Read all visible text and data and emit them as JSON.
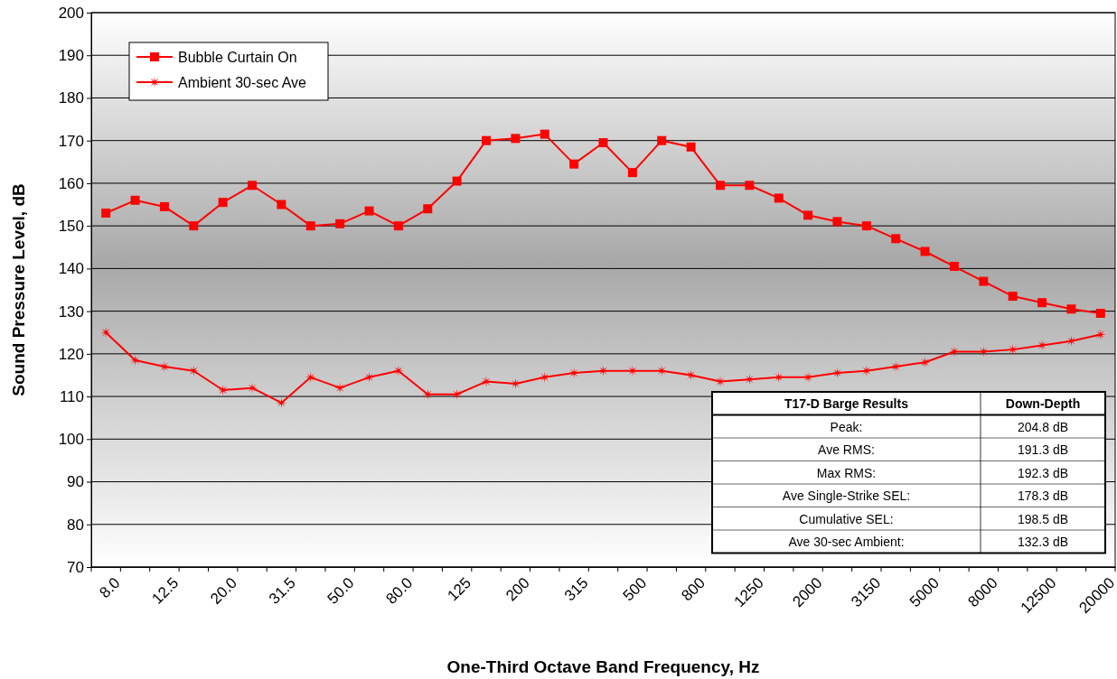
{
  "chart_data": {
    "type": "line",
    "xlabel": "One-Third Octave Band Frequency, Hz",
    "ylabel": "Sound Pressure Level, dB",
    "categories": [
      "8.0",
      null,
      "12.5",
      null,
      "20.0",
      null,
      "31.5",
      null,
      "50.0",
      null,
      "80.0",
      null,
      "125",
      null,
      "200",
      null,
      "315",
      null,
      "500",
      null,
      "800",
      null,
      "1250",
      null,
      "2000",
      null,
      "3150",
      null,
      "5000",
      null,
      "8000",
      null,
      "12500",
      null,
      "20000"
    ],
    "series": [
      {
        "name": "Bubble Curtain On",
        "color": "#ff0000",
        "marker": "square",
        "values": [
          153,
          156,
          154.5,
          150,
          155.5,
          159.5,
          155,
          150,
          150.5,
          153.5,
          150,
          154,
          160.5,
          170,
          170.5,
          171.5,
          164.5,
          169.5,
          162.5,
          170,
          168.5,
          159.5,
          159.5,
          156.5,
          152.5,
          151,
          150,
          147,
          144,
          140.5,
          137,
          133.5,
          132,
          130.5,
          129.5
        ]
      },
      {
        "name": "Ambient 30-sec Ave",
        "color": "#ff0000",
        "marker": "star",
        "values": [
          125,
          118.5,
          117,
          116,
          111.5,
          112,
          108.5,
          114.5,
          112,
          114.5,
          116,
          110.5,
          110.5,
          113.5,
          113,
          114.5,
          115.5,
          116,
          116,
          116,
          115,
          113.5,
          114,
          114.5,
          114.5,
          115.5,
          116,
          117,
          118,
          120.5,
          120.5,
          121,
          122,
          123,
          124.5
        ]
      }
    ],
    "ylim": [
      70,
      200
    ],
    "yticks": [
      70,
      80,
      90,
      100,
      110,
      120,
      130,
      140,
      150,
      160,
      170,
      180,
      190,
      200
    ],
    "grid": "y",
    "legend": "top left",
    "line_style": "solid",
    "annotations": [
      "T17-D Barge Results",
      "Down-Depth",
      "Peak:",
      "204.8 dB",
      "Ave RMS:",
      "191.3 dB",
      "Max RMS:",
      "192.3 dB",
      "Ave Single-Strike SEL:",
      "178.3 dB",
      "Cumulative SEL:",
      "198.5 dB",
      "Ave 30-sec Ambient:",
      "132.3 dB"
    ]
  }
}
